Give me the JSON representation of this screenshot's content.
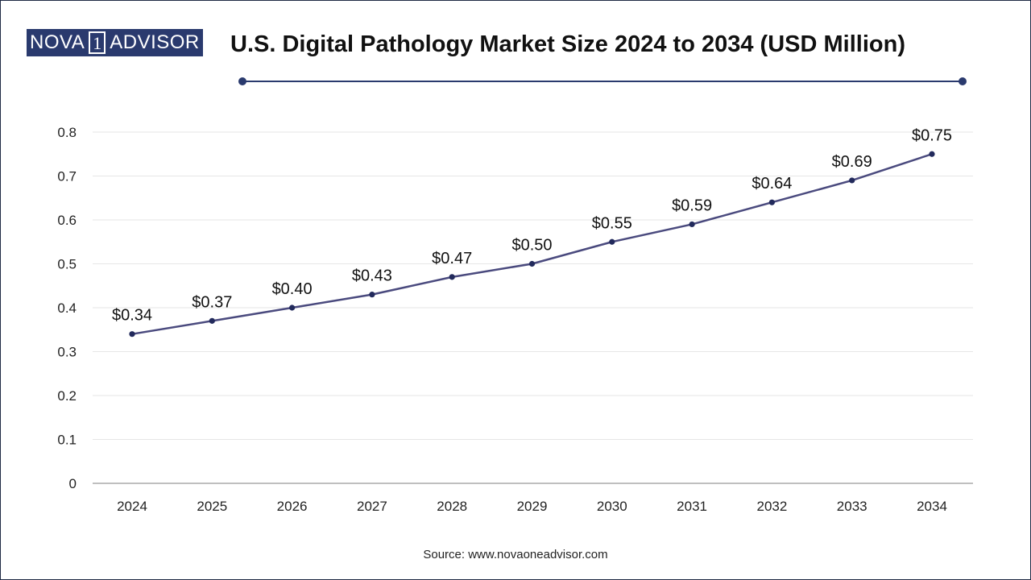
{
  "brand": {
    "logo_part1": "NOVA",
    "logo_part2": "1",
    "logo_part3": "ADVISOR"
  },
  "colors": {
    "line": "#4a4a7e",
    "marker": "#222a5c",
    "grid": "#e6e6e6",
    "axis": "#999999",
    "accent": "#2a3a6e"
  },
  "chart_data": {
    "type": "line",
    "title": "U.S. Digital Pathology Market Size 2024 to 2034 (USD Million)",
    "xlabel": "",
    "ylabel": "",
    "categories": [
      "2024",
      "2025",
      "2026",
      "2027",
      "2028",
      "2029",
      "2030",
      "2031",
      "2032",
      "2033",
      "2034"
    ],
    "series": [
      {
        "values": [
          0.34,
          0.37,
          0.4,
          0.43,
          0.47,
          0.5,
          0.55,
          0.59,
          0.64,
          0.69,
          0.75
        ],
        "labels": [
          "$0.34",
          "$0.37",
          "$0.40",
          "$0.43",
          "$0.47",
          "$0.50",
          "$0.55",
          "$0.59",
          "$0.64",
          "$0.69",
          "$0.75"
        ]
      }
    ],
    "ylim": [
      0,
      0.8
    ],
    "yticks": [
      "0",
      "0.1",
      "0.2",
      "0.3",
      "0.4",
      "0.5",
      "0.6",
      "0.7",
      "0.8"
    ],
    "grid": true,
    "legend": "none"
  },
  "source": "Source: www.novaoneadvisor.com"
}
